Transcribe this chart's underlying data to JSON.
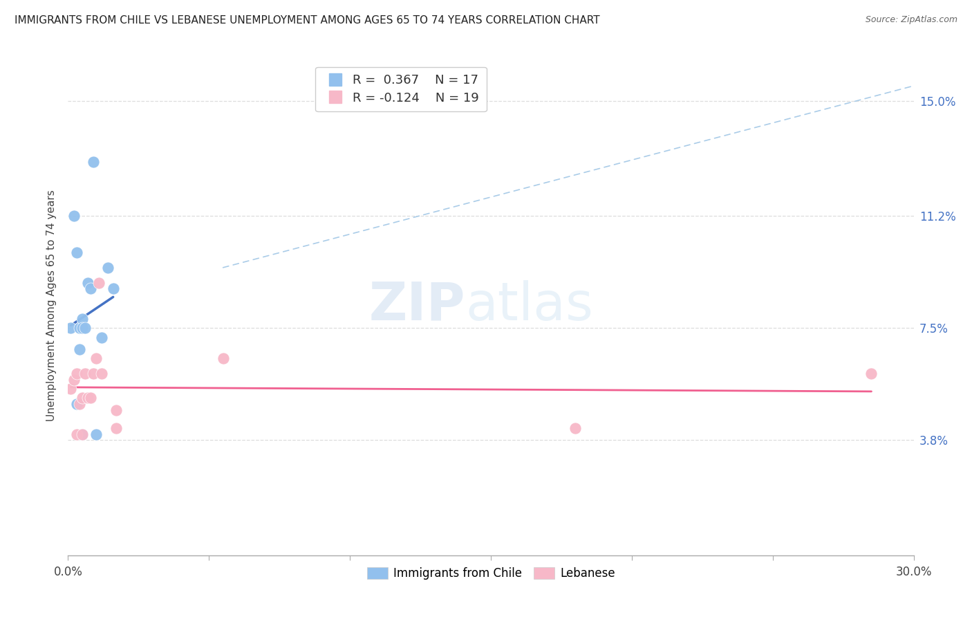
{
  "title": "IMMIGRANTS FROM CHILE VS LEBANESE UNEMPLOYMENT AMONG AGES 65 TO 74 YEARS CORRELATION CHART",
  "source": "Source: ZipAtlas.com",
  "ylabel": "Unemployment Among Ages 65 to 74 years",
  "xlim": [
    0.0,
    0.3
  ],
  "ylim": [
    0.0,
    0.165
  ],
  "ytick_positions": [
    0.038,
    0.075,
    0.112,
    0.15
  ],
  "ytick_labels": [
    "3.8%",
    "7.5%",
    "11.2%",
    "15.0%"
  ],
  "chile_color": "#92c0ed",
  "lebanese_color": "#f7b8c8",
  "chile_line_color": "#4472c4",
  "lebanese_line_color": "#f06090",
  "legend_R_chile": "0.367",
  "legend_N_chile": "17",
  "legend_R_lebanese": "-0.124",
  "legend_N_lebanese": "19",
  "watermark_zip": "ZIP",
  "watermark_atlas": "atlas",
  "chile_scatter_x": [
    0.001,
    0.002,
    0.003,
    0.003,
    0.004,
    0.004,
    0.005,
    0.005,
    0.005,
    0.006,
    0.007,
    0.008,
    0.009,
    0.01,
    0.012,
    0.014,
    0.016
  ],
  "chile_scatter_y": [
    0.075,
    0.112,
    0.1,
    0.05,
    0.075,
    0.068,
    0.078,
    0.075,
    0.04,
    0.075,
    0.09,
    0.088,
    0.13,
    0.04,
    0.072,
    0.095,
    0.088
  ],
  "lebanese_scatter_x": [
    0.001,
    0.002,
    0.003,
    0.003,
    0.004,
    0.005,
    0.005,
    0.006,
    0.007,
    0.008,
    0.009,
    0.01,
    0.011,
    0.012,
    0.017,
    0.017,
    0.055,
    0.18,
    0.285
  ],
  "lebanese_scatter_y": [
    0.055,
    0.058,
    0.04,
    0.06,
    0.05,
    0.04,
    0.052,
    0.06,
    0.052,
    0.052,
    0.06,
    0.065,
    0.09,
    0.06,
    0.048,
    0.042,
    0.065,
    0.042,
    0.06
  ],
  "chile_trend_x_start": 0.001,
  "chile_trend_x_end": 0.016,
  "lebanese_trend_x_start": 0.001,
  "lebanese_trend_x_end": 0.285,
  "dashed_line_x": [
    0.055,
    0.3
  ],
  "dashed_line_y": [
    0.095,
    0.155
  ],
  "grid_color": "#dddddd",
  "spine_color": "#aaaaaa"
}
